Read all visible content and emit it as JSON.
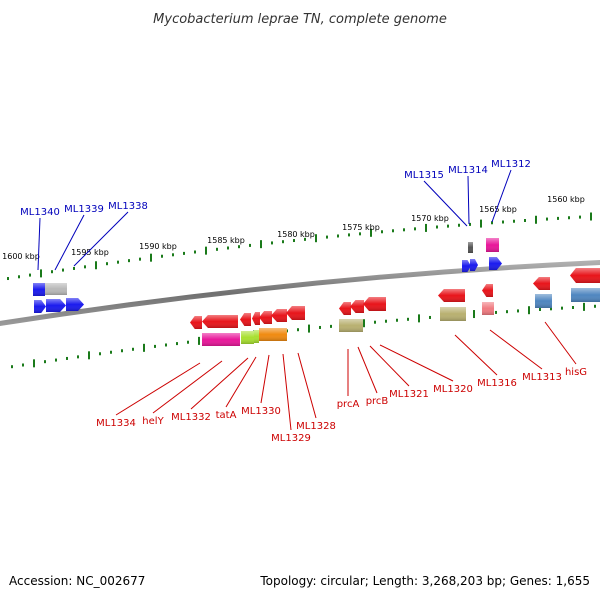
{
  "title": "Mycobacterium leprae TN, complete genome",
  "footer": {
    "accession": "Accession: NC_002677",
    "summary": "Topology: circular; Length: 3,268,203 bp; Genes: 1,655"
  },
  "colors": {
    "backbone": "#808080",
    "tick": "#1a7a1a",
    "top_label": "#0000bb",
    "bottom_label": "#cc0000",
    "red": "#e8141a",
    "blue": "#1a1aee",
    "magenta": "#e8179a",
    "olive": "#b8b070",
    "orange": "#f08a10",
    "lime": "#a8e030",
    "grey": "#b8b8b8",
    "steel": "#4f86c0",
    "pink": "#f07a80"
  },
  "scale": {
    "unit": "kbp",
    "ticks": [
      {
        "label": "1600 kbp"
      },
      {
        "label": "1595 kbp"
      },
      {
        "label": "1590 kbp"
      },
      {
        "label": "1585 kbp"
      },
      {
        "label": "1580 kbp"
      },
      {
        "label": "1575 kbp"
      },
      {
        "label": "1570 kbp"
      },
      {
        "label": "1565 kbp"
      },
      {
        "label": "1560 kbp"
      }
    ]
  },
  "top_labels": [
    {
      "text": "ML1340"
    },
    {
      "text": "ML1339"
    },
    {
      "text": "ML1338"
    },
    {
      "text": "ML1315"
    },
    {
      "text": "ML1314"
    },
    {
      "text": "ML1312"
    }
  ],
  "bottom_labels": [
    {
      "text": "ML1334"
    },
    {
      "text": "helY"
    },
    {
      "text": "ML1332"
    },
    {
      "text": "tatA"
    },
    {
      "text": "ML1330"
    },
    {
      "text": "ML1329"
    },
    {
      "text": "ML1328"
    },
    {
      "text": "prcA"
    },
    {
      "text": "prcB"
    },
    {
      "text": "ML1321"
    },
    {
      "text": "ML1320"
    },
    {
      "text": "ML1316"
    },
    {
      "text": "ML1313"
    },
    {
      "text": "hisG"
    }
  ]
}
